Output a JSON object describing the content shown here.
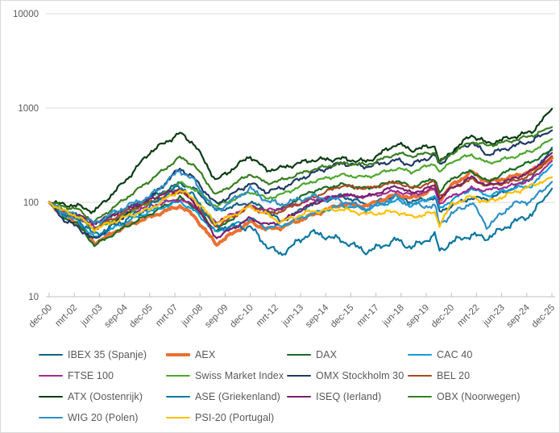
{
  "chart": {
    "title": "",
    "axis_color": "#bfbfbf",
    "grid_color": "#d9d9d9",
    "tick_label_color": "#595959",
    "legend_text_color": "#595959"
  },
  "chart_data": {
    "type": "line",
    "title": "",
    "xlabel": "",
    "ylabel": "",
    "y_axis": {
      "scale": "log",
      "ticks": [
        10,
        100,
        1000,
        10000
      ],
      "tick_labels": [
        "10",
        "100",
        "1000",
        "10000"
      ],
      "ylim": [
        10,
        10000
      ]
    },
    "x_tick_labels": [
      "dec-00",
      "mrt-02",
      "jun-03",
      "sep-04",
      "dec-05",
      "mrt-07",
      "jun-08",
      "sep-09",
      "dec-10",
      "mrt-12",
      "jun-13",
      "sep-14",
      "dec-15",
      "mrt-17",
      "jun-18",
      "sep-19",
      "dec-20",
      "mrt-22",
      "jun-23",
      "sep-24",
      "dec-25"
    ],
    "x_unit": "years-since-dec-2000",
    "x_range": [
      0,
      25
    ],
    "grid": "horizontal",
    "legend_position": "bottom",
    "x_keypoints": [
      0,
      0.75,
      1.4,
      2.25,
      3.8,
      5,
      6.5,
      7.2,
      8.3,
      10,
      10.8,
      11.5,
      13,
      14.5,
      15.8,
      17.3,
      18,
      19.2,
      19.4,
      20,
      21,
      21.8,
      23,
      24,
      25
    ],
    "series": [
      {
        "name": "IBEX 35 (Spanje)",
        "color": "#156082",
        "width": 2.2,
        "values": [
          100,
          80,
          72,
          58,
          85,
          110,
          160,
          140,
          82,
          100,
          85,
          62,
          95,
          118,
          95,
          118,
          102,
          112,
          78,
          92,
          112,
          108,
          140,
          185,
          380
        ]
      },
      {
        "name": "AEX",
        "color": "#E97132",
        "width": 4.0,
        "values": [
          100,
          72,
          60,
          37,
          56,
          70,
          92,
          72,
          36,
          62,
          52,
          54,
          72,
          95,
          92,
          122,
          110,
          140,
          105,
          150,
          210,
          165,
          185,
          215,
          295
        ]
      },
      {
        "name": "DAX",
        "color": "#196B24",
        "width": 2.2,
        "values": [
          100,
          68,
          60,
          35,
          55,
          75,
          112,
          90,
          50,
          95,
          78,
          85,
          130,
          155,
          140,
          170,
          145,
          180,
          125,
          180,
          215,
          165,
          225,
          270,
          360
        ]
      },
      {
        "name": "CAC 40",
        "color": "#0F9ED5",
        "width": 2.2,
        "values": [
          100,
          74,
          64,
          42,
          62,
          80,
          102,
          82,
          48,
          68,
          54,
          56,
          75,
          92,
          85,
          105,
          92,
          118,
          85,
          105,
          140,
          118,
          140,
          150,
          250
        ]
      },
      {
        "name": "FTSE 100",
        "color": "#A02B93",
        "width": 2.2,
        "values": [
          100,
          78,
          72,
          55,
          75,
          92,
          108,
          92,
          62,
          92,
          82,
          86,
          105,
          118,
          115,
          132,
          120,
          138,
          98,
          115,
          140,
          135,
          150,
          175,
          275
        ]
      },
      {
        "name": "Swiss Market Index",
        "color": "#4EA72E",
        "width": 2.2,
        "values": [
          100,
          80,
          70,
          52,
          75,
          100,
          160,
          140,
          90,
          130,
          110,
          120,
          165,
          195,
          185,
          230,
          210,
          260,
          205,
          270,
          320,
          260,
          300,
          350,
          470
        ]
      },
      {
        "name": "OMX Stockholm 30",
        "color": "#1F3864",
        "width": 2.2,
        "values": [
          100,
          65,
          55,
          40,
          75,
          110,
          230,
          180,
          95,
          160,
          130,
          140,
          200,
          260,
          240,
          280,
          250,
          320,
          240,
          340,
          430,
          320,
          390,
          450,
          580
        ]
      },
      {
        "name": "BEL 20",
        "color": "#A84A1F",
        "width": 2.2,
        "values": [
          100,
          78,
          70,
          52,
          80,
          100,
          132,
          100,
          55,
          90,
          75,
          80,
          110,
          150,
          140,
          165,
          140,
          165,
          118,
          140,
          175,
          150,
          165,
          195,
          310
        ]
      },
      {
        "name": "ATX (Oostenrijk)",
        "color": "#0C3B13",
        "width": 2.2,
        "values": [
          100,
          95,
          92,
          80,
          170,
          340,
          540,
          420,
          170,
          310,
          220,
          230,
          280,
          290,
          270,
          420,
          360,
          400,
          260,
          340,
          520,
          420,
          490,
          560,
          980
        ]
      },
      {
        "name": "ASE (Griekenland)",
        "color": "#0B76A0",
        "width": 2.2,
        "values": [
          100,
          75,
          68,
          45,
          65,
          90,
          150,
          115,
          55,
          55,
          35,
          28,
          48,
          40,
          30,
          40,
          33,
          45,
          30,
          38,
          45,
          42,
          60,
          75,
          140
        ]
      },
      {
        "name": "ISEQ (Ierland)",
        "color": "#78206E",
        "width": 2.2,
        "values": [
          100,
          80,
          75,
          60,
          85,
          108,
          140,
          100,
          42,
          68,
          58,
          62,
          95,
          120,
          115,
          150,
          125,
          150,
          110,
          140,
          185,
          150,
          175,
          215,
          335
        ]
      },
      {
        "name": "OBX (Noorwegen)",
        "color": "#3A7D22",
        "width": 2.2,
        "values": [
          100,
          90,
          85,
          62,
          110,
          170,
          300,
          250,
          120,
          200,
          160,
          170,
          220,
          260,
          250,
          330,
          310,
          340,
          260,
          330,
          440,
          400,
          450,
          510,
          630
        ]
      },
      {
        "name": "WIG 20 (Polen)",
        "color": "#2E8FC6",
        "width": 2.2,
        "values": [
          100,
          78,
          72,
          60,
          90,
          115,
          220,
          170,
          80,
          140,
          105,
          95,
          115,
          105,
          85,
          115,
          95,
          90,
          58,
          75,
          100,
          55,
          95,
          105,
          165
        ]
      },
      {
        "name": "PSI-20 (Portugal)",
        "color": "#FFC000",
        "width": 2.2,
        "values": [
          100,
          80,
          72,
          52,
          70,
          85,
          135,
          110,
          60,
          90,
          75,
          62,
          80,
          85,
          75,
          80,
          70,
          78,
          58,
          95,
          115,
          100,
          125,
          150,
          185
        ]
      }
    ]
  }
}
